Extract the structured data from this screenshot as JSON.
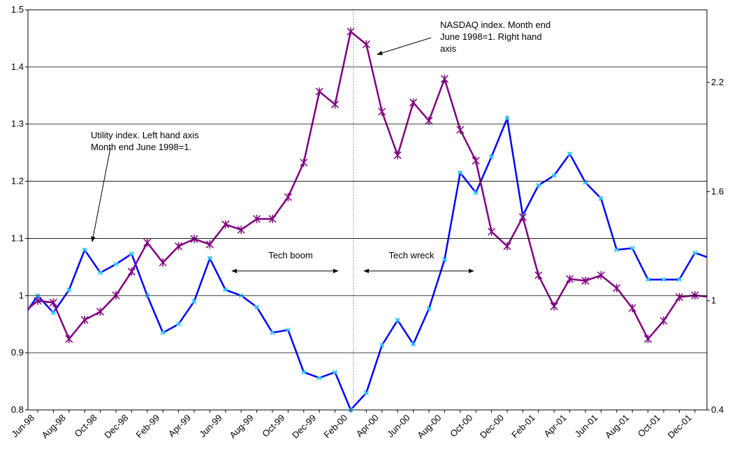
{
  "chart_data": {
    "type": "line",
    "categories": [
      null,
      "Jun-98",
      null,
      "Aug-98",
      null,
      "Oct-98",
      null,
      "Dec-98",
      null,
      "Feb-99",
      null,
      "Apr-99",
      null,
      "Jun-99",
      null,
      "Aug-99",
      null,
      "Oct-99",
      null,
      "Dec-99",
      null,
      "Feb-00",
      null,
      "Apr-00",
      null,
      "Jun-00",
      null,
      "Aug-00",
      null,
      "Oct-00",
      null,
      "Dec-00",
      null,
      "Feb-01",
      null,
      "Apr-01",
      null,
      "Jun-01",
      null,
      "Aug-01",
      null,
      "Oct-01",
      null,
      "Dec-01",
      null
    ],
    "series": [
      {
        "color": "#0000ff",
        "marker_color": "#33ccff",
        "axis": "y",
        "values": [
          0.96,
          1.0,
          0.97,
          1.01,
          1.08,
          1.04,
          1.055,
          1.073,
          1.0,
          0.935,
          0.95,
          0.99,
          1.065,
          1.01,
          1.0,
          0.98,
          0.935,
          0.94,
          0.866,
          0.856,
          0.866,
          0.8,
          0.83,
          0.913,
          0.957,
          0.915,
          0.977,
          1.063,
          1.215,
          1.18,
          1.243,
          1.31,
          1.14,
          1.193,
          1.21,
          1.248,
          1.198,
          1.17,
          1.08,
          1.083,
          1.028,
          1.028,
          1.028,
          1.075,
          1.065
        ]
      },
      {
        "color": "#800080",
        "marker_color": "#800080",
        "axis": "y2",
        "values": [
          0.93,
          1.0,
          0.99,
          0.79,
          0.895,
          0.94,
          1.03,
          1.16,
          1.32,
          1.21,
          1.3,
          1.34,
          1.31,
          1.42,
          1.39,
          1.45,
          1.45,
          1.57,
          1.76,
          2.15,
          2.08,
          2.48,
          2.41,
          2.04,
          1.8,
          2.09,
          1.99,
          2.22,
          1.94,
          1.77,
          1.38,
          1.3,
          1.46,
          1.14,
          0.97,
          1.12,
          1.11,
          1.14,
          1.07,
          0.96,
          0.79,
          0.89,
          1.02,
          1.03,
          1.02
        ]
      }
    ],
    "ylim": [
      0.8,
      1.5
    ],
    "yticks": [
      0.8,
      0.9,
      1,
      1.1,
      1.2,
      1.3,
      1.4,
      1.5
    ],
    "y2lim": [
      0.4,
      2.6
    ],
    "y2ticks": [
      0.4,
      1,
      1.6,
      2.2
    ],
    "grid": true,
    "annotations": [
      {
        "lines": [
          "Utility index.  Left hand axis",
          "Month end June 1998=1."
        ]
      },
      {
        "lines": [
          "NASDAQ index.  Month end",
          "June 1998=1.  Right hand",
          "axis"
        ]
      },
      {
        "lines": [
          "Tech boom"
        ]
      },
      {
        "lines": [
          "Tech wreck"
        ]
      }
    ]
  }
}
